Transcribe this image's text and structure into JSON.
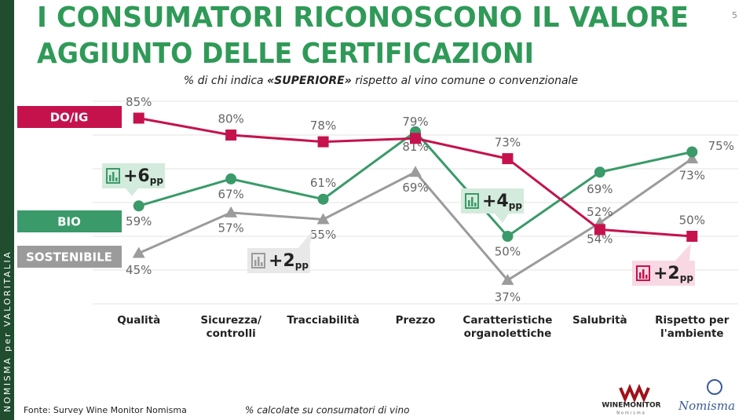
{
  "sidebar": "NOMISMA per VALORITALIA",
  "page_number": "5",
  "chart_data": {
    "type": "line",
    "title": [
      "I CONSUMATORI RICONOSCONO IL VALORE",
      "AGGIUNTO DELLE CERTIFICAZIONI"
    ],
    "subtitle": [
      "% di chi indica ",
      "«SUPERIORE»",
      " rispetto al vino comune o convenzionale"
    ],
    "categories": [
      "Qualità",
      "Sicurezza/\ncontrolli",
      "Tracciabilità",
      "Prezzo",
      "Caratteristiche\norganolettiche",
      "Salubrità",
      "Rispetto per\nl'ambiente"
    ],
    "ylim": [
      30,
      90
    ],
    "yticks": [
      30,
      40,
      50,
      60,
      70,
      80,
      90
    ],
    "grid": true,
    "series": [
      {
        "name": "DO/IG",
        "color": "#c5124d",
        "marker": "square",
        "values": [
          85,
          80,
          78,
          79,
          73,
          52,
          50
        ],
        "value_labels": [
          "85%",
          "80%",
          "78%",
          "79%",
          "73%",
          "52%",
          "50%"
        ]
      },
      {
        "name": "BIO",
        "color": "#3a9a69",
        "marker": "circle",
        "values": [
          59,
          67,
          61,
          81,
          50,
          69,
          75
        ],
        "value_labels": [
          "59%",
          "67%",
          "61%",
          "81%",
          "50%",
          "69%",
          "75%"
        ]
      },
      {
        "name": "SOSTENIBILE",
        "color": "#9b9b9b",
        "marker": "triangle",
        "values": [
          45,
          57,
          55,
          69,
          37,
          54,
          73
        ],
        "value_labels": [
          "45%",
          "57%",
          "55%",
          "69%",
          "37%",
          "54%",
          "73%"
        ]
      }
    ],
    "annotations": [
      {
        "text": "+6",
        "unit": "pp",
        "color": "#3a9a69"
      },
      {
        "text": "+2",
        "unit": "pp",
        "color": "#9b9b9b"
      },
      {
        "text": "+4",
        "unit": "pp",
        "color": "#3a9a69"
      },
      {
        "text": "+2",
        "unit": "pp",
        "color": "#c5124d"
      }
    ]
  },
  "footer": {
    "source": "Fonte: Survey Wine Monitor Nomisma",
    "note": "% calcolate su consumatori di vino"
  },
  "logos": {
    "winemonitor": "WINEMONITOR",
    "winemonitor_sub": "Nomisma",
    "nomisma": "Nomisma"
  }
}
